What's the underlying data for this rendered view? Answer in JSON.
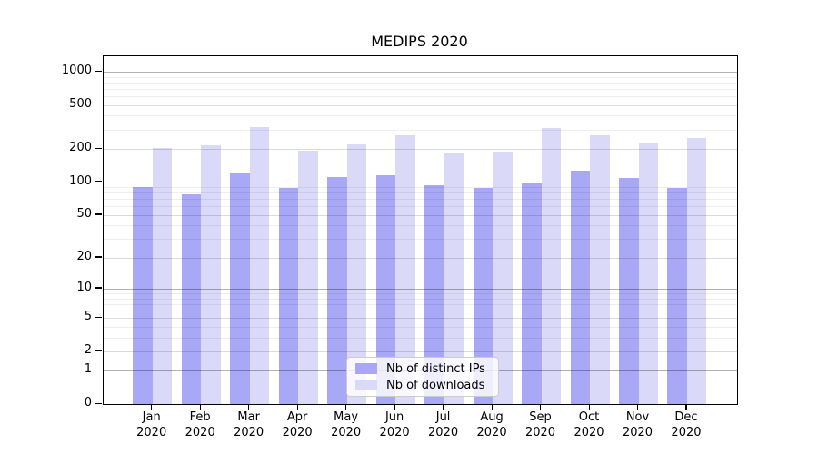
{
  "title": "MEDIPS 2020",
  "chart_data": {
    "type": "bar",
    "title": "MEDIPS 2020",
    "categories": [
      "Jan 2020",
      "Feb 2020",
      "Mar 2020",
      "Apr 2020",
      "May 2020",
      "Jun 2020",
      "Jul 2020",
      "Aug 2020",
      "Sep 2020",
      "Oct 2020",
      "Nov 2020",
      "Dec 2020"
    ],
    "series": [
      {
        "name": "Nb of distinct IPs",
        "color": "#a8a8f6",
        "values": [
          90,
          77,
          123,
          89,
          111,
          115,
          94,
          88,
          100,
          127,
          108,
          89
        ]
      },
      {
        "name": "Nb of downloads",
        "color": "#dadaf8",
        "values": [
          206,
          217,
          317,
          193,
          222,
          267,
          184,
          190,
          310,
          267,
          225,
          251
        ]
      }
    ],
    "xlabel": "",
    "ylabel": "",
    "yscale": "log1p",
    "yticks": [
      0,
      1,
      2,
      5,
      10,
      20,
      50,
      100,
      200,
      500,
      1000
    ],
    "ylim": [
      0,
      1380
    ],
    "grid": "horizontal",
    "legend_position": "inside-bottom-center"
  },
  "colors": {
    "bar_dark": "#a8a8f6",
    "bar_light": "#dadaf8",
    "grid_major": "#b3b3b3",
    "grid_mid": "#dbdbdb",
    "grid_minor": "#efefef",
    "axis": "#000000"
  }
}
